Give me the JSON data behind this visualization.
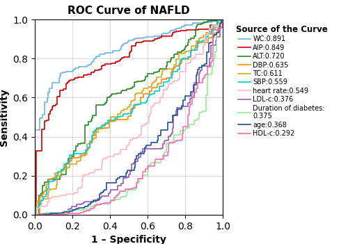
{
  "title": "ROC Curve of NAFLD",
  "xlabel": "1 – Specificity",
  "ylabel": "Sensitivity",
  "legend_title": "Source of the Curve",
  "curves": [
    {
      "label": "WC:0.891",
      "auc": 0.891,
      "color": "#6ab4e8",
      "lw": 1.2
    },
    {
      "label": "AIP:0.849",
      "auc": 0.849,
      "color": "#cc0000",
      "lw": 1.2
    },
    {
      "label": "ALT:0.720",
      "auc": 0.72,
      "color": "#228B22",
      "lw": 1.2
    },
    {
      "label": "DBP:0.635",
      "auc": 0.635,
      "color": "#FF8C00",
      "lw": 1.2
    },
    {
      "label": "TC:0.611",
      "auc": 0.611,
      "color": "#DAA520",
      "lw": 1.2
    },
    {
      "label": "SBP:0.559",
      "auc": 0.559,
      "color": "#00CED1",
      "lw": 1.2
    },
    {
      "label": "heart rate:0.549",
      "auc": 0.549,
      "color": "#FFB6C1",
      "lw": 1.2
    },
    {
      "label": "LDL-c:0.376",
      "auc": 0.376,
      "color": "#9B59B6",
      "lw": 1.2
    },
    {
      "label": "Duration of diabetes:\n0.375",
      "auc": 0.375,
      "color": "#90EE90",
      "lw": 1.2
    },
    {
      "label": "age:0.368",
      "auc": 0.368,
      "color": "#1F4E9A",
      "lw": 1.2
    },
    {
      "label": "HDL-c:0.292",
      "auc": 0.292,
      "color": "#FF69B4",
      "lw": 1.2
    }
  ],
  "xlim": [
    0.0,
    1.0
  ],
  "ylim": [
    0.0,
    1.0
  ],
  "xticks": [
    0.0,
    0.2,
    0.4,
    0.6,
    0.8,
    1.0
  ],
  "yticks": [
    0.0,
    0.2,
    0.4,
    0.6,
    0.8,
    1.0
  ],
  "grid": true,
  "figsize": [
    5.0,
    3.51
  ],
  "dpi": 100,
  "seeds": [
    7,
    14,
    21,
    28,
    35,
    42,
    49,
    56,
    63,
    70,
    77
  ],
  "n_steps": 100
}
